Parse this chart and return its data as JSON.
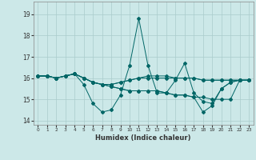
{
  "xlabel": "Humidex (Indice chaleur)",
  "background_color": "#cce8e8",
  "grid_color": "#aacccc",
  "line_color": "#006666",
  "xlim": [
    -0.5,
    23.5
  ],
  "ylim": [
    13.8,
    19.6
  ],
  "yticks": [
    14,
    15,
    16,
    17,
    18,
    19
  ],
  "xticks": [
    0,
    1,
    2,
    3,
    4,
    5,
    6,
    7,
    8,
    9,
    10,
    11,
    12,
    13,
    14,
    15,
    16,
    17,
    18,
    19,
    20,
    21,
    22,
    23
  ],
  "series": [
    [
      16.1,
      16.1,
      16.0,
      16.1,
      16.2,
      15.7,
      14.8,
      14.4,
      14.5,
      15.2,
      16.6,
      18.8,
      16.6,
      15.3,
      15.3,
      15.9,
      16.7,
      15.3,
      14.9,
      14.8,
      15.5,
      15.8,
      15.9,
      15.9
    ],
    [
      16.1,
      16.1,
      16.0,
      16.1,
      16.2,
      16.0,
      15.8,
      15.7,
      15.6,
      15.5,
      15.4,
      15.4,
      15.4,
      15.4,
      15.3,
      15.2,
      15.2,
      15.1,
      15.1,
      15.0,
      15.0,
      15.0,
      15.9,
      15.9
    ],
    [
      16.1,
      16.1,
      16.0,
      16.1,
      16.2,
      16.0,
      15.8,
      15.7,
      15.7,
      15.8,
      15.9,
      16.0,
      16.0,
      16.0,
      16.0,
      16.0,
      16.0,
      16.0,
      15.9,
      15.9,
      15.9,
      15.9,
      15.9,
      15.9
    ],
    [
      16.1,
      16.1,
      16.0,
      16.1,
      16.2,
      16.0,
      15.8,
      15.7,
      15.7,
      15.8,
      15.9,
      16.0,
      16.1,
      16.1,
      16.1,
      16.0,
      16.0,
      16.0,
      15.9,
      15.9,
      15.9,
      15.9,
      15.9,
      15.9
    ],
    [
      16.1,
      16.1,
      16.0,
      16.1,
      16.2,
      16.0,
      15.8,
      15.7,
      15.6,
      15.5,
      15.4,
      15.4,
      15.4,
      15.4,
      15.3,
      15.2,
      15.2,
      15.1,
      14.4,
      14.7,
      15.5,
      15.8,
      15.9,
      15.9
    ]
  ]
}
